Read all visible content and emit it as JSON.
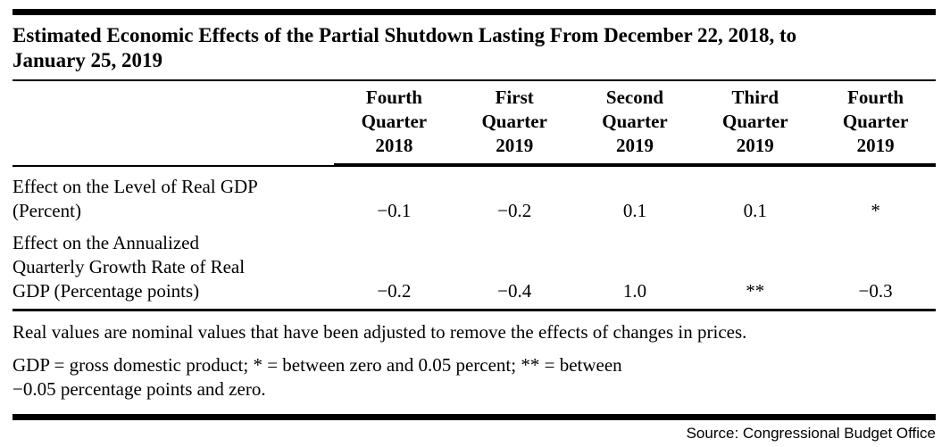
{
  "title": "Estimated Economic Effects of the Partial Shutdown Lasting From December 22, 2018, to\nJanuary 25, 2019",
  "table": {
    "column_headers": [
      "Fourth\nQuarter\n2018",
      "First\nQuarter\n2019",
      "Second\nQuarter\n2019",
      "Third\nQuarter\n2019",
      "Fourth\nQuarter\n2019"
    ],
    "rows": [
      {
        "label": "Effect on the Level of Real GDP\n(Percent)",
        "values": [
          "−0.1",
          "−0.2",
          "0.1",
          "0.1",
          "*"
        ]
      },
      {
        "label": "Effect on the Annualized\nQuarterly Growth Rate of Real\nGDP (Percentage points)",
        "values": [
          "−0.2",
          "−0.4",
          "1.0",
          "**",
          "−0.3"
        ]
      }
    ]
  },
  "footnotes": [
    "Real values are nominal values that have been adjusted to remove the effects of changes in prices.",
    "GDP = gross domestic product; * = between zero and 0.05 percent; ** = between\n−0.05 percentage points and zero."
  ],
  "source": "Source: Congressional Budget Office",
  "colors": {
    "text": "#000000",
    "rule": "#000000",
    "background": "#ffffff"
  }
}
